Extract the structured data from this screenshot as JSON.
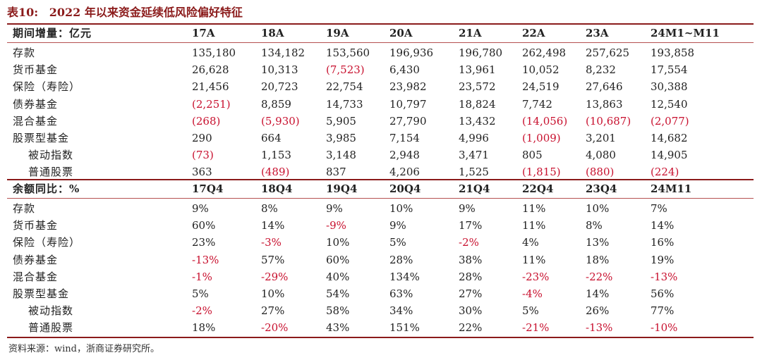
{
  "title": {
    "label": "表10:",
    "text": "2022 年以来资金延续低风险偏好特征"
  },
  "colors": {
    "accent": "#8b1b1b",
    "negative": "#c8102e",
    "text": "#222222"
  },
  "section1": {
    "header": {
      "label": "期间增量：亿元",
      "cols": [
        "17A",
        "18A",
        "19A",
        "20A",
        "21A",
        "22A",
        "23A",
        "24M1~M11"
      ]
    },
    "rows": [
      {
        "label": "存款",
        "indent": false,
        "values": [
          "135,180",
          "134,182",
          "153,560",
          "196,936",
          "196,780",
          "262,498",
          "257,625",
          "193,858"
        ]
      },
      {
        "label": "货币基金",
        "indent": false,
        "values": [
          "26,628",
          "10,313",
          "(7,523)",
          "6,430",
          "13,961",
          "10,052",
          "8,232",
          "17,554"
        ]
      },
      {
        "label": "保险（寿险）",
        "indent": false,
        "values": [
          "21,456",
          "20,723",
          "22,754",
          "23,982",
          "23,572",
          "24,519",
          "27,646",
          "30,388"
        ]
      },
      {
        "label": "债券基金",
        "indent": false,
        "values": [
          "(2,251)",
          "8,859",
          "14,733",
          "10,797",
          "18,824",
          "7,742",
          "13,863",
          "12,540"
        ]
      },
      {
        "label": "混合基金",
        "indent": false,
        "values": [
          "(268)",
          "(5,930)",
          "5,905",
          "27,790",
          "13,432",
          "(14,056)",
          "(10,687)",
          "(2,077)"
        ]
      },
      {
        "label": "股票型基金",
        "indent": false,
        "values": [
          "290",
          "664",
          "3,985",
          "7,154",
          "4,996",
          "(1,009)",
          "3,201",
          "14,682"
        ]
      },
      {
        "label": "被动指数",
        "indent": true,
        "values": [
          "(73)",
          "1,153",
          "3,148",
          "2,948",
          "3,471",
          "805",
          "4,080",
          "14,905"
        ]
      },
      {
        "label": "普通股票",
        "indent": true,
        "values": [
          "363",
          "(489)",
          "837",
          "4,206",
          "1,525",
          "(1,815)",
          "(880)",
          "(224)"
        ]
      }
    ]
  },
  "section2": {
    "header": {
      "label": "余额同比：%",
      "cols": [
        "17Q4",
        "18Q4",
        "19Q4",
        "20Q4",
        "21Q4",
        "22Q4",
        "23Q4",
        "24M11"
      ]
    },
    "rows": [
      {
        "label": "存款",
        "indent": false,
        "values": [
          "9%",
          "8%",
          "9%",
          "10%",
          "9%",
          "11%",
          "10%",
          "7%"
        ]
      },
      {
        "label": "货币基金",
        "indent": false,
        "values": [
          "60%",
          "14%",
          "-9%",
          "9%",
          "17%",
          "11%",
          "8%",
          "14%"
        ]
      },
      {
        "label": "保险（寿险）",
        "indent": false,
        "values": [
          "23%",
          "-3%",
          "10%",
          "5%",
          "-2%",
          "4%",
          "13%",
          "16%"
        ]
      },
      {
        "label": "债券基金",
        "indent": false,
        "values": [
          "-13%",
          "57%",
          "60%",
          "28%",
          "38%",
          "11%",
          "18%",
          "19%"
        ]
      },
      {
        "label": "混合基金",
        "indent": false,
        "values": [
          "-1%",
          "-29%",
          "40%",
          "134%",
          "28%",
          "-23%",
          "-22%",
          "-13%"
        ]
      },
      {
        "label": "股票型基金",
        "indent": false,
        "values": [
          "5%",
          "10%",
          "54%",
          "63%",
          "27%",
          "-4%",
          "14%",
          "56%"
        ]
      },
      {
        "label": "被动指数",
        "indent": true,
        "values": [
          "-2%",
          "27%",
          "58%",
          "34%",
          "30%",
          "5%",
          "26%",
          "77%"
        ]
      },
      {
        "label": "普通股票",
        "indent": true,
        "values": [
          "18%",
          "-20%",
          "43%",
          "151%",
          "22%",
          "-21%",
          "-13%",
          "-10%"
        ]
      }
    ]
  },
  "source": "资料来源：wind，浙商证券研究所。"
}
